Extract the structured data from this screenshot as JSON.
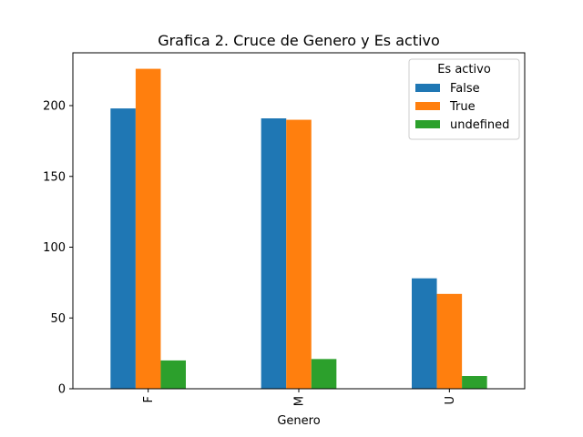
{
  "chart_data": {
    "type": "bar",
    "title": "Grafica 2. Cruce de Genero y Es activo",
    "xlabel": "Genero",
    "ylabel": "",
    "categories": [
      "F",
      "M",
      "U"
    ],
    "series": [
      {
        "name": "False",
        "values": [
          198,
          191,
          78
        ],
        "color": "#1f77b4"
      },
      {
        "name": "True",
        "values": [
          226,
          190,
          67
        ],
        "color": "#ff7f0e"
      },
      {
        "name": "undefined",
        "values": [
          20,
          21,
          9
        ],
        "color": "#2ca02c"
      }
    ],
    "ylim": [
      0,
      237.3
    ],
    "yticks": [
      0,
      50,
      100,
      150,
      200
    ],
    "legend": {
      "title": "Es activo",
      "placement": "top-right"
    },
    "grid": false
  }
}
